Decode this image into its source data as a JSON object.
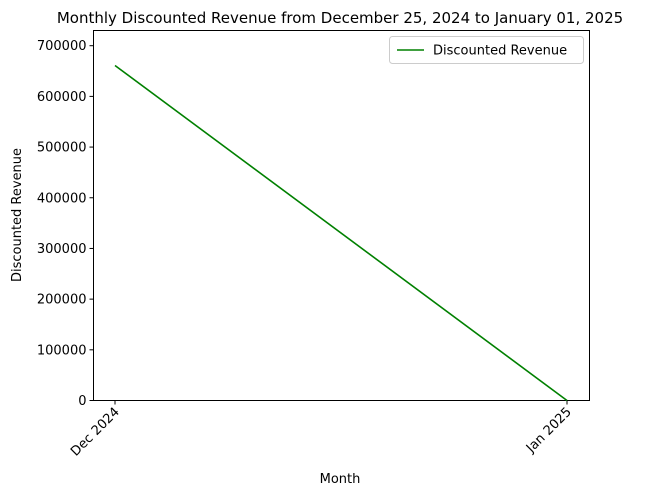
{
  "chart_data": {
    "type": "line",
    "title": "Monthly Discounted Revenue from December 25, 2024 to January 01, 2025",
    "xlabel": "Month",
    "ylabel": "Discounted Revenue",
    "categories": [
      "Dec 2024",
      "Jan 2025"
    ],
    "series": [
      {
        "name": "Discounted Revenue",
        "color": "#008000",
        "values": [
          661000,
          0
        ]
      }
    ],
    "ylim": [
      0,
      730000
    ],
    "yticks": [
      0,
      100000,
      200000,
      300000,
      400000,
      500000,
      600000,
      700000
    ],
    "ytick_labels": [
      "0",
      "100000",
      "200000",
      "300000",
      "400000",
      "500000",
      "600000",
      "700000"
    ],
    "legend_position": "top-right",
    "grid": false
  }
}
